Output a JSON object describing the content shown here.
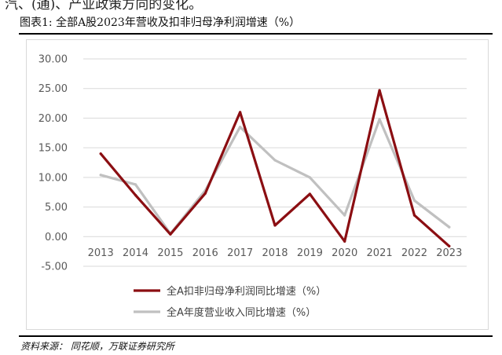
{
  "header_fragment": "汽、(通)、产业政策方向的变化。",
  "caption": "图表1:  全部A股2023年营收及扣非归母净利润增速（%）",
  "source": "资料来源：  同花顺，万联证券研究所",
  "chart_data": {
    "type": "line",
    "title": "",
    "xlabel": "",
    "ylabel": "",
    "categories": [
      "2013",
      "2014",
      "2015",
      "2016",
      "2017",
      "2018",
      "2019",
      "2020",
      "2021",
      "2022",
      "2023"
    ],
    "ylim": [
      -5,
      30
    ],
    "yticks": [
      "-5.00",
      "0.00",
      "5.00",
      "10.00",
      "15.00",
      "20.00",
      "25.00",
      "30.00"
    ],
    "grid": true,
    "legend_position": "bottom",
    "series": [
      {
        "name": "全A扣非归母净利润同比增速（%）",
        "color": "#8B0E12",
        "values": [
          14.0,
          7.0,
          0.4,
          7.3,
          21.0,
          1.9,
          7.2,
          -0.8,
          24.7,
          3.6,
          -1.6
        ]
      },
      {
        "name": "全A年度营业收入同比增速（%）",
        "color": "#C0C0C0",
        "values": [
          10.4,
          8.8,
          0.5,
          7.8,
          18.5,
          12.9,
          10.0,
          3.6,
          19.8,
          6.1,
          1.6
        ]
      }
    ]
  }
}
